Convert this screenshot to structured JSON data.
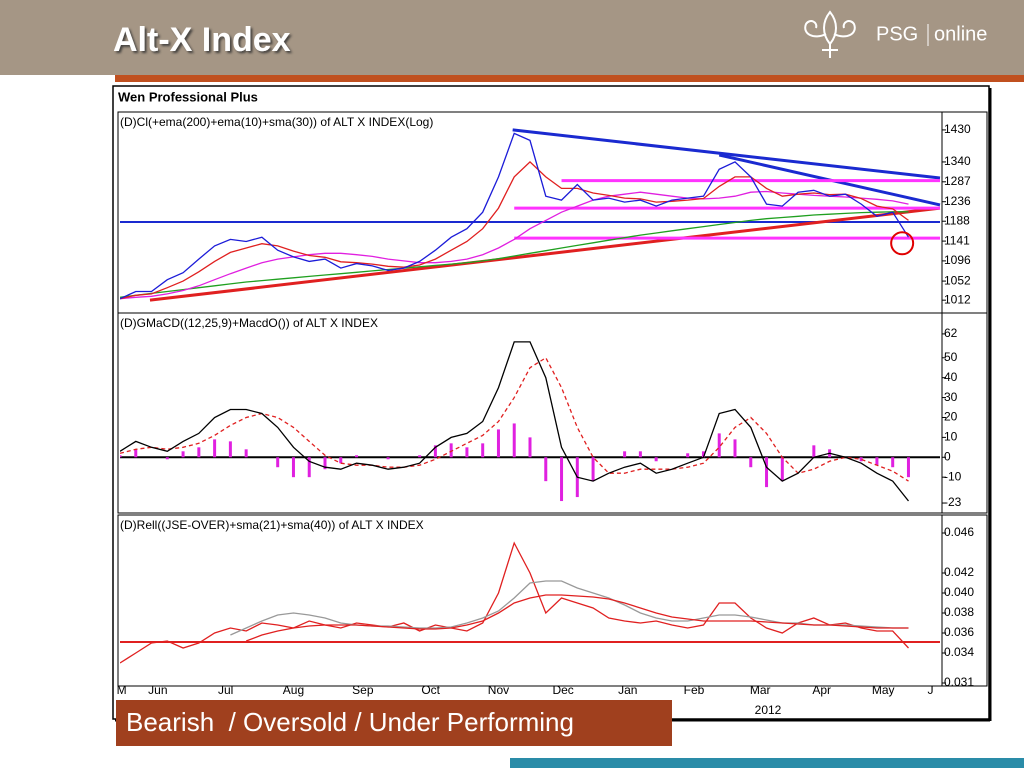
{
  "header": {
    "title": "Alt-X Index",
    "logo_brand": "PSG",
    "logo_word": "online"
  },
  "app_title": "Wen Professional Plus",
  "footer_label": "Bearish  / Oversold / Under Performing",
  "x_axis": {
    "x": [
      0,
      1,
      2,
      3,
      4,
      5,
      6,
      7,
      8,
      9,
      10,
      11,
      12,
      13,
      14,
      15,
      16,
      17,
      18,
      19,
      20,
      21,
      22,
      23,
      24,
      25,
      26,
      27,
      28,
      29,
      30,
      31,
      32,
      33,
      34,
      35,
      36,
      37,
      38,
      39,
      40,
      41,
      42,
      43,
      44,
      45,
      46,
      47,
      48,
      49,
      50
    ],
    "xlim": [
      0,
      52
    ],
    "xticks": [
      {
        "value": 0.1,
        "label": "M"
      },
      {
        "value": 2.4,
        "label": "Jun"
      },
      {
        "value": 6.7,
        "label": "Jul"
      },
      {
        "value": 11.0,
        "label": "Aug"
      },
      {
        "value": 15.4,
        "label": "Sep"
      },
      {
        "value": 19.7,
        "label": "Oct"
      },
      {
        "value": 24.0,
        "label": "Nov"
      },
      {
        "value": 28.1,
        "label": "Dec"
      },
      {
        "value": 32.2,
        "label": "Jan"
      },
      {
        "value": 36.4,
        "label": "Feb"
      },
      {
        "value": 40.6,
        "label": "Mar"
      },
      {
        "value": 44.5,
        "label": "Apr"
      },
      {
        "value": 48.4,
        "label": "May"
      },
      {
        "value": 51.4,
        "label": "J"
      }
    ],
    "year_label": "2012"
  },
  "chart_data": [
    {
      "type": "line",
      "title": "(D)Cl(+ema(200)+ema(10)+sma(30)) of ALT X INDEX(Log)",
      "log_scale": true,
      "ylim": [
        992,
        1474
      ],
      "yticks": [
        1012,
        1052,
        1096,
        1141,
        1188,
        1236,
        1287,
        1340,
        1430
      ],
      "hlines": [
        {
          "y": 1186,
          "color": "#1a2ad0"
        }
      ],
      "trendlines": [
        {
          "x": [
            24.9,
            52
          ],
          "y": [
            1430,
            1297
          ],
          "color": "#1a2ad0"
        },
        {
          "x": [
            38,
            52
          ],
          "y": [
            1359,
            1228
          ],
          "color": "#1a2ad0"
        },
        {
          "x": [
            1.9,
            52
          ],
          "y": [
            1012,
            1220
          ],
          "color": "#e02020"
        },
        {
          "x": [
            28,
            52
          ],
          "y": [
            1290,
            1290
          ],
          "color": "#ff33ff"
        },
        {
          "x": [
            25,
            52
          ],
          "y": [
            1220,
            1220
          ],
          "color": "#ff33ff"
        },
        {
          "x": [
            25,
            52
          ],
          "y": [
            1148,
            1148
          ],
          "color": "#ff33ff"
        }
      ],
      "highlight": {
        "x": 49.6,
        "y": 1136,
        "color": "#e00000"
      },
      "series": [
        {
          "color": "#20a020",
          "values": [
            1018,
            1022,
            1026,
            1030,
            1034,
            1038,
            1042,
            1046,
            1050,
            1053,
            1056,
            1059,
            1062,
            1065,
            1068,
            1071,
            1074,
            1077,
            1080,
            1083,
            1086,
            1089,
            1092,
            1096,
            1101,
            1107,
            1113,
            1119,
            1125,
            1131,
            1137,
            1143,
            1149,
            1155,
            1160,
            1165,
            1170,
            1175,
            1180,
            1185,
            1190,
            1194,
            1197,
            1200,
            1203,
            1205,
            1207,
            1209,
            1210,
            1211,
            1211
          ]
        },
        {
          "color": "#e020e0",
          "values": [
            1015,
            1018,
            1020,
            1025,
            1032,
            1042,
            1055,
            1068,
            1080,
            1092,
            1100,
            1105,
            1110,
            1113,
            1113,
            1110,
            1106,
            1100,
            1096,
            1092,
            1092,
            1095,
            1100,
            1110,
            1125,
            1145,
            1170,
            1190,
            1210,
            1225,
            1240,
            1250,
            1255,
            1260,
            1255,
            1250,
            1245,
            1243,
            1245,
            1250,
            1260,
            1262,
            1258,
            1255,
            1252,
            1250,
            1248,
            1245,
            1242,
            1238,
            1230
          ]
        },
        {
          "color": "#e02020",
          "values": [
            1015,
            1022,
            1025,
            1038,
            1052,
            1072,
            1095,
            1115,
            1125,
            1135,
            1130,
            1118,
            1108,
            1104,
            1094,
            1092,
            1089,
            1084,
            1082,
            1087,
            1100,
            1120,
            1140,
            1170,
            1220,
            1300,
            1340,
            1300,
            1270,
            1270,
            1258,
            1252,
            1245,
            1243,
            1235,
            1237,
            1240,
            1244,
            1275,
            1300,
            1300,
            1270,
            1250,
            1255,
            1258,
            1254,
            1255,
            1244,
            1225,
            1218,
            1190
          ]
        },
        {
          "color": "#1c1cd8",
          "values": [
            1015,
            1030,
            1030,
            1055,
            1070,
            1100,
            1130,
            1145,
            1140,
            1150,
            1120,
            1105,
            1095,
            1100,
            1080,
            1090,
            1085,
            1075,
            1080,
            1095,
            1120,
            1150,
            1170,
            1210,
            1300,
            1420,
            1400,
            1250,
            1240,
            1280,
            1240,
            1245,
            1235,
            1240,
            1225,
            1240,
            1245,
            1250,
            1320,
            1340,
            1300,
            1230,
            1225,
            1260,
            1265,
            1250,
            1255,
            1230,
            1200,
            1210,
            1150
          ]
        }
      ]
    },
    {
      "type": "line",
      "title": "(D)GMaCD((12,25,9)+MacdO()) of ALT X INDEX",
      "ylim": [
        -26.5,
        71
      ],
      "yticks": [
        -23,
        -10,
        0,
        10,
        20,
        30,
        40,
        50,
        62
      ],
      "hlines": [
        {
          "y": 0,
          "color": "#000000"
        }
      ],
      "series": [
        {
          "color": "#e020e0",
          "style": "bar",
          "values": [
            1,
            4,
            0,
            -1,
            3,
            5,
            9,
            8,
            4,
            0,
            -5,
            -10,
            -10,
            -6,
            -3,
            1,
            0,
            -1,
            0,
            1,
            6,
            7,
            5,
            7,
            14,
            17,
            10,
            -12,
            -22,
            -20,
            -12,
            0,
            3,
            3,
            -2,
            0,
            2,
            3,
            12,
            9,
            -5,
            -15,
            -12,
            0,
            6,
            4,
            0,
            -2,
            -4,
            -5,
            -10
          ]
        },
        {
          "color": "#e02020",
          "style": "dashed",
          "values": [
            2,
            4,
            5,
            4,
            5,
            7,
            11,
            16,
            20,
            22,
            20,
            15,
            8,
            1,
            -3,
            -4,
            -4,
            -5,
            -5,
            -4,
            -1,
            3,
            7,
            11,
            18,
            30,
            45,
            50,
            35,
            15,
            0,
            -8,
            -8,
            -6,
            -6,
            -6,
            -5,
            -3,
            5,
            15,
            20,
            12,
            0,
            -8,
            -6,
            -2,
            0,
            -1,
            -4,
            -7,
            -12
          ]
        },
        {
          "color": "#000000",
          "values": [
            3,
            8,
            5,
            3,
            8,
            12,
            20,
            24,
            24,
            22,
            15,
            5,
            -2,
            -5,
            -6,
            -3,
            -4,
            -6,
            -5,
            -3,
            5,
            10,
            12,
            18,
            35,
            58,
            58,
            40,
            5,
            -10,
            -12,
            -8,
            -5,
            -3,
            -8,
            -6,
            -3,
            0,
            22,
            24,
            15,
            -5,
            -12,
            -8,
            0,
            2,
            0,
            -3,
            -8,
            -12,
            -22
          ]
        }
      ]
    },
    {
      "type": "line",
      "title": "(D)Rell((JSE-OVER)+sma(21)+sma(40)) of ALT X INDEX",
      "ylim": [
        0.031,
        0.0475
      ],
      "yticks": [
        0.031,
        0.034,
        0.036,
        0.038,
        {
          "value": 0.04,
          "label": "0.040"
        },
        0.042,
        0.046
      ],
      "hlines": [
        {
          "y": 0.0351,
          "color": "#e02020"
        }
      ],
      "series": [
        {
          "color": "#e02020",
          "values": [
            0.033,
            0.034,
            0.035,
            0.0352,
            0.0345,
            0.035,
            0.036,
            0.0365,
            0.0362,
            0.037,
            0.0368,
            0.0365,
            0.0372,
            0.0368,
            0.0365,
            0.037,
            0.0368,
            0.0366,
            0.037,
            0.0362,
            0.0368,
            0.0365,
            0.0362,
            0.037,
            0.04,
            0.045,
            0.042,
            0.038,
            0.0395,
            0.039,
            0.0385,
            0.0375,
            0.0372,
            0.037,
            0.0372,
            0.0368,
            0.0365,
            0.0368,
            0.039,
            0.039,
            0.0375,
            0.0365,
            0.036,
            0.037,
            0.0375,
            0.0368,
            0.037,
            0.0365,
            0.0362,
            0.0362,
            0.0345
          ]
        },
        {
          "color": "#999999",
          "values": [
            null,
            null,
            null,
            null,
            null,
            null,
            null,
            0.0358,
            0.0365,
            0.0372,
            0.0378,
            0.038,
            0.0378,
            0.0375,
            0.037,
            0.0368,
            0.0367,
            0.0367,
            0.0366,
            0.0365,
            0.0365,
            0.0366,
            0.037,
            0.0375,
            0.0382,
            0.0395,
            0.041,
            0.0412,
            0.0412,
            0.0405,
            0.04,
            0.0395,
            0.0388,
            0.038,
            0.0375,
            0.0372,
            0.0372,
            0.0375,
            0.0378,
            0.0378,
            0.0376,
            0.0373,
            0.037,
            0.037,
            0.0368,
            0.0368,
            0.0368,
            0.0367,
            0.0366,
            0.0365,
            0.0365
          ]
        },
        {
          "color": "#e02020",
          "values": [
            null,
            null,
            null,
            null,
            null,
            null,
            null,
            null,
            0.0352,
            0.0358,
            0.0362,
            0.0365,
            0.0367,
            0.0368,
            0.0368,
            0.0368,
            0.0367,
            0.0366,
            0.0365,
            0.0364,
            0.0364,
            0.0365,
            0.0368,
            0.0372,
            0.038,
            0.039,
            0.0395,
            0.0398,
            0.0398,
            0.0397,
            0.0396,
            0.0394,
            0.039,
            0.0385,
            0.038,
            0.0376,
            0.0374,
            0.0372,
            0.0372,
            0.0372,
            0.0372,
            0.0371,
            0.037,
            0.0369,
            0.0368,
            0.0368,
            0.0367,
            0.0366,
            0.0365,
            0.0365,
            0.0365
          ]
        }
      ]
    }
  ]
}
